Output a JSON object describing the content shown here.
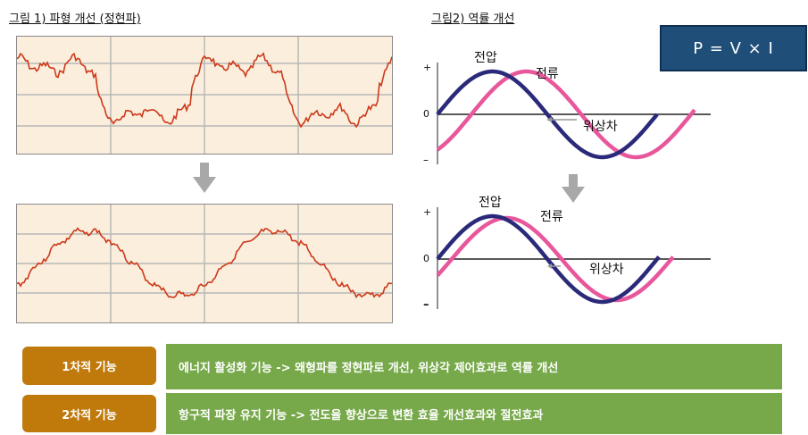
{
  "fig1": {
    "title": "그림 1) 파형 개선 (정현파)"
  },
  "fig2": {
    "title": "그림2) 역률 개선",
    "top": {
      "label_voltage": "전압",
      "label_current": "전류",
      "label_phase": "위상차",
      "axis_plus": "+",
      "axis_zero": "0",
      "axis_minus": "–"
    },
    "bottom": {
      "label_voltage": "전압",
      "label_current": "전류",
      "label_phase": "위상차",
      "axis_plus": "+",
      "axis_zero": "0",
      "axis_minus": "–"
    }
  },
  "formula": "P = V × I",
  "functions": [
    {
      "label": "1차적 기능",
      "desc": "에너지 활성화 기능 -> 왜형파를 정현파로 개선, 위상각 제어효과로 역률 개선"
    },
    {
      "label": "2차적 기능",
      "desc": "항구적 파장 유지 기능 -> 전도율 향상으로 변환 효율 개선효과와 절전효과"
    }
  ],
  "colors": {
    "voltage": "#2b2a7a",
    "current": "#e8579c",
    "wave": "#cc3a1a",
    "pill": "#c07a0c",
    "bar": "#77a94a",
    "formula_bg": "#1f4e79"
  }
}
